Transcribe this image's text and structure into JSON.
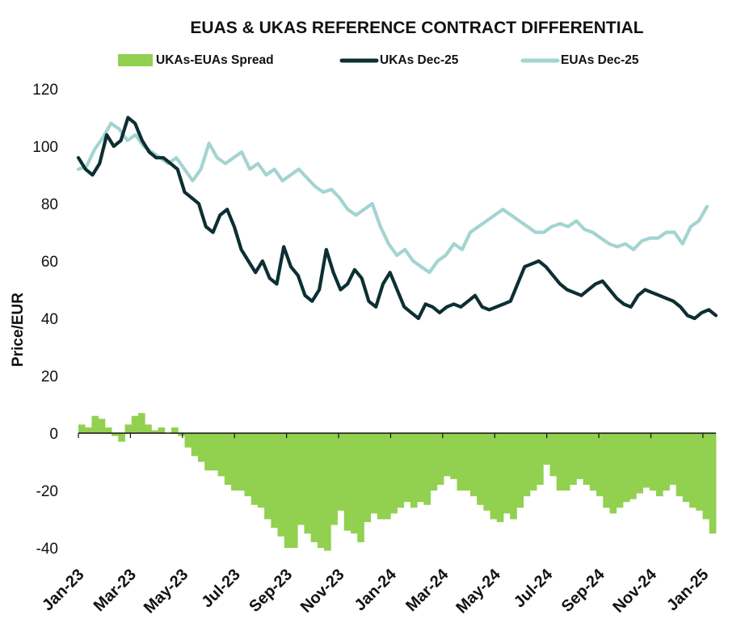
{
  "chart_data": {
    "type": "line",
    "title": "EUAS & UKAS REFERENCE CONTRACT DIFFERENTIAL",
    "ylabel": "Price/EUR",
    "xlabel": "",
    "ylim": [
      -40,
      120
    ],
    "yticks": [
      120,
      100,
      80,
      60,
      40,
      20,
      0,
      -20,
      -40
    ],
    "xticks": [
      "Jan-23",
      "Mar-23",
      "May-23",
      "Jul-23",
      "Sep-23",
      "Nov-23",
      "Jan-24",
      "Mar-24",
      "May-24",
      "Jul-24",
      "Sep-24",
      "Nov-24",
      "Jan-25"
    ],
    "x_start": "Jan-23",
    "x_end": "Jan-25",
    "legend_position": "top",
    "series": [
      {
        "name": "UKAs-EUAs Spread",
        "type": "bar",
        "color": "#92d050",
        "values": [
          3,
          2,
          6,
          5,
          2,
          -1,
          -3,
          3,
          6,
          7,
          3,
          1,
          2,
          0,
          2,
          -1,
          -5,
          -8,
          -10,
          -13,
          -13,
          -15,
          -18,
          -20,
          -20,
          -22,
          -25,
          -26,
          -30,
          -33,
          -36,
          -40,
          -40,
          -32,
          -35,
          -38,
          -40,
          -41,
          -32,
          -27,
          -34,
          -35,
          -38,
          -31,
          -28,
          -30,
          -30,
          -28,
          -26,
          -24,
          -26,
          -24,
          -25,
          -20,
          -18,
          -15,
          -16,
          -20,
          -20,
          -22,
          -25,
          -27,
          -30,
          -31,
          -28,
          -30,
          -26,
          -22,
          -20,
          -18,
          -11,
          -15,
          -20,
          -20,
          -18,
          -16,
          -18,
          -20,
          -22,
          -26,
          -28,
          -26,
          -24,
          -23,
          -21,
          -19,
          -20,
          -22,
          -20,
          -18,
          -22,
          -24,
          -26,
          -27,
          -30,
          -35
        ]
      },
      {
        "name": "UKAs Dec-25",
        "type": "line",
        "color": "#0d2f33",
        "values": [
          96,
          92,
          90,
          94,
          104,
          100,
          102,
          110,
          108,
          102,
          98,
          96,
          96,
          94,
          92,
          84,
          82,
          80,
          72,
          70,
          76,
          78,
          72,
          64,
          60,
          56,
          60,
          54,
          52,
          65,
          58,
          55,
          48,
          46,
          50,
          64,
          56,
          50,
          52,
          57,
          54,
          46,
          44,
          52,
          56,
          50,
          44,
          42,
          40,
          45,
          44,
          42,
          44,
          45,
          44,
          46,
          48,
          44,
          43,
          44,
          45,
          46,
          52,
          58,
          59,
          60,
          58,
          55,
          52,
          50,
          49,
          48,
          50,
          52,
          53,
          50,
          47,
          45,
          44,
          48,
          50,
          49,
          48,
          47,
          46,
          44,
          41,
          40,
          42,
          43,
          41
        ]
      },
      {
        "name": "EUAs Dec-25",
        "type": "line",
        "color": "#a3d4d2",
        "values": [
          92,
          93,
          99,
          103,
          108,
          106,
          102,
          104,
          100,
          98,
          96,
          94,
          96,
          92,
          88,
          92,
          101,
          96,
          94,
          96,
          98,
          92,
          94,
          90,
          92,
          88,
          90,
          92,
          89,
          86,
          84,
          85,
          82,
          78,
          76,
          78,
          80,
          72,
          66,
          62,
          64,
          60,
          58,
          56,
          60,
          62,
          66,
          64,
          70,
          72,
          74,
          76,
          78,
          76,
          74,
          72,
          70,
          70,
          72,
          73,
          72,
          74,
          71,
          70,
          68,
          66,
          65,
          66,
          64,
          67,
          68,
          68,
          70,
          70,
          66,
          72,
          74,
          79
        ]
      }
    ]
  }
}
